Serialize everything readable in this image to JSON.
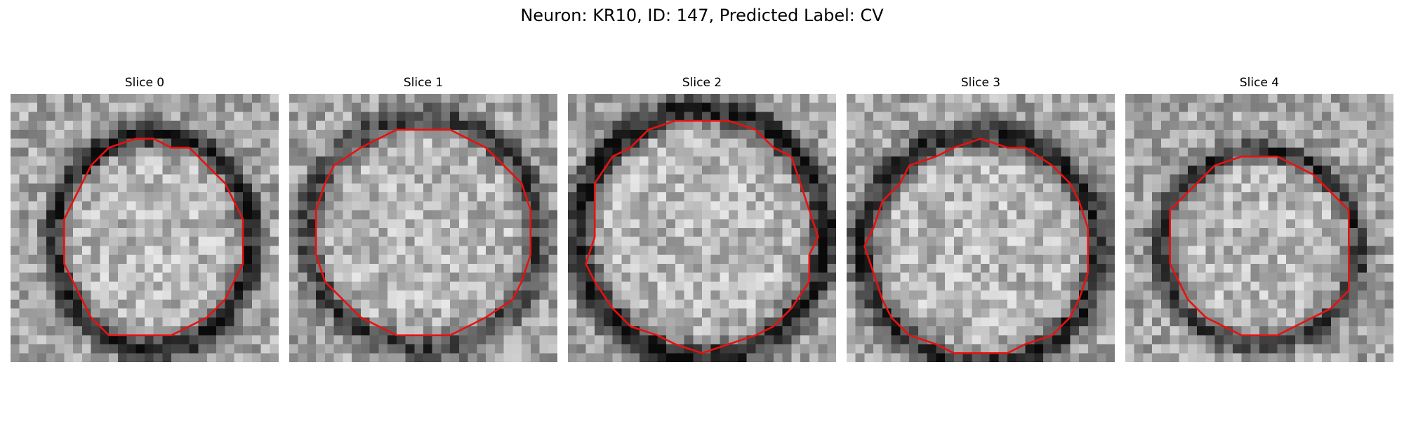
{
  "figure": {
    "title": "Neuron: KR10, ID: 147, Predicted Label: CV"
  },
  "colors": {
    "contour": "#e8110f",
    "background": "#ffffff",
    "colormap": "gray"
  },
  "panels": [
    {
      "title": "Slice 0",
      "seed": 11,
      "center": [
        0.53,
        0.55
      ],
      "radius": [
        0.37,
        0.4
      ],
      "ring_strength": 0.55
    },
    {
      "title": "Slice 1",
      "seed": 23,
      "center": [
        0.5,
        0.52
      ],
      "radius": [
        0.43,
        0.43
      ],
      "ring_strength": 0.4
    },
    {
      "title": "Slice 2",
      "seed": 37,
      "center": [
        0.5,
        0.52
      ],
      "radius": [
        0.46,
        0.46
      ],
      "ring_strength": 0.55
    },
    {
      "title": "Slice 3",
      "seed": 41,
      "center": [
        0.5,
        0.58
      ],
      "radius": [
        0.44,
        0.43
      ],
      "ring_strength": 0.5
    },
    {
      "title": "Slice 4",
      "seed": 53,
      "center": [
        0.5,
        0.57
      ],
      "radius": [
        0.37,
        0.36
      ],
      "ring_strength": 0.45
    }
  ]
}
